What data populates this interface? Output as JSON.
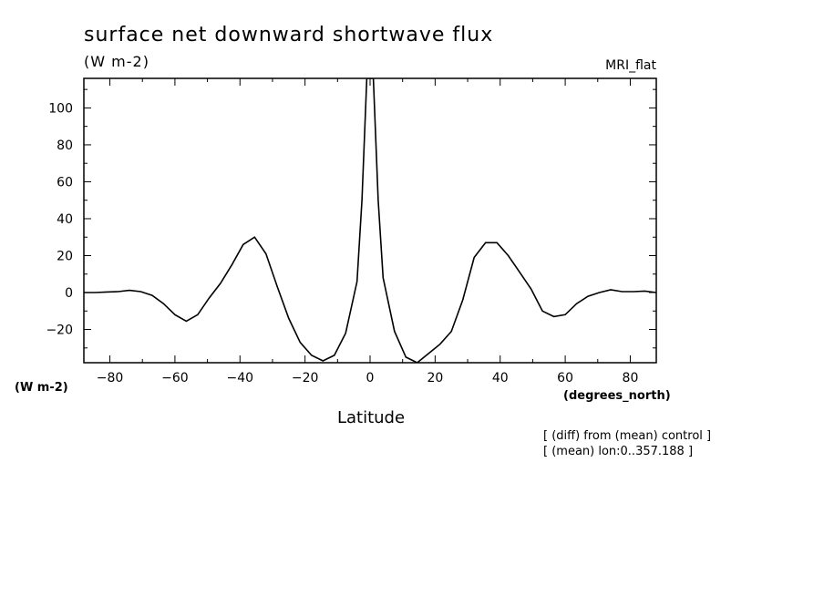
{
  "chart_data": {
    "type": "line",
    "title": "surface net downward shortwave flux",
    "title_units": "(W m-2)",
    "model_label": "MRI_flat",
    "xlabel": "Latitude",
    "xunits": "(degrees_north)",
    "yunits": "(W m-2)",
    "xlim": [
      -88,
      88
    ],
    "ylim": [
      -38,
      116
    ],
    "xticks": [
      -80,
      -60,
      -40,
      -20,
      0,
      20,
      40,
      60,
      80
    ],
    "yticks": [
      -20,
      0,
      20,
      40,
      60,
      80,
      100
    ],
    "grid": false,
    "notes": [
      "[ (diff) from (mean) control ]",
      "[ (mean) lon:0..357.188 ]"
    ],
    "series": [
      {
        "x": [
          -88,
          -84.5,
          -81,
          -77.5,
          -74,
          -70.5,
          -67,
          -63.5,
          -60,
          -56.5,
          -53,
          -49.5,
          -46,
          -42.5,
          -39,
          -35.5,
          -32,
          -28.5,
          -25,
          -21.5,
          -18,
          -14.5,
          -11,
          -7.5,
          -4,
          -2.5,
          -1,
          0,
          1,
          2.5,
          4,
          7.5,
          11,
          14.5,
          18,
          21.5,
          25,
          28.5,
          32,
          35.5,
          39,
          42.5,
          46,
          49.5,
          53,
          56.5,
          60,
          63.5,
          67,
          70.5,
          74,
          77.5,
          81,
          84.5,
          88
        ],
        "values": [
          0,
          0,
          0.3,
          0.5,
          1.2,
          0.5,
          -1.5,
          -6,
          -12,
          -15.5,
          -12,
          -3,
          5,
          15,
          26,
          30,
          21,
          3,
          -14,
          -27,
          -34,
          -37,
          -34,
          -22,
          6,
          50,
          116,
          116,
          116,
          50,
          8,
          -21,
          -35,
          -38,
          -33,
          -28,
          -21,
          -4,
          19,
          27,
          27,
          20,
          11,
          2,
          -10,
          -13,
          -12,
          -6,
          -2,
          0,
          1.5,
          0.5,
          0.5,
          0.8,
          0
        ]
      }
    ]
  }
}
